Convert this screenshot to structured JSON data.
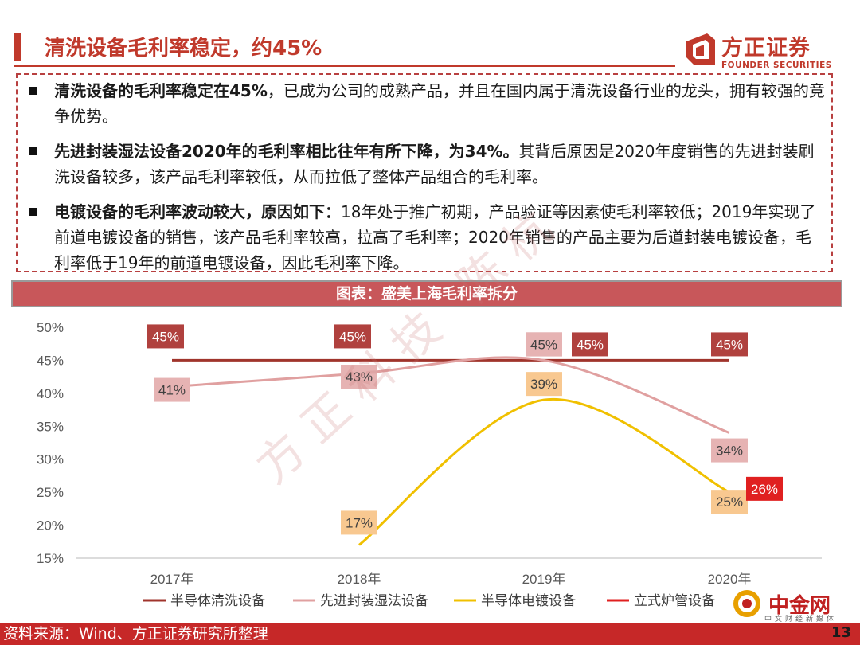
{
  "header": {
    "title": "清洗设备毛利率稳定，约45%",
    "logo_cn": "方正证券",
    "logo_en": "FOUNDER SECURITIES"
  },
  "bullets": [
    {
      "bold": "清洗设备的毛利率稳定在45%",
      "text": "，已成为公司的成熟产品，并且在国内属于清洗设备行业的龙头，拥有较强的竞争优势。"
    },
    {
      "bold": "先进封装湿法设备2020年的毛利率相比往年有所下降，为34%。",
      "text": "其背后原因是2020年度销售的先进封装刷洗设备较多，该产品毛利率较低，从而拉低了整体产品组合的毛利率。"
    },
    {
      "bold": "电镀设备的毛利率波动较大，原因如下：",
      "text": "18年处于推广初期，产品验证等因素使毛利率较低；2019年实现了前道电镀设备的销售，该产品毛利率较高，拉高了毛利率；2020年销售的产品主要为后道封装电镀设备，毛利率低于19年的前道电镀设备，因此毛利率下降。"
    }
  ],
  "chart_title": "图表：盛美上海毛利率拆分",
  "chart_data": {
    "type": "line",
    "categories": [
      "2017年",
      "2018年",
      "2019年",
      "2020年"
    ],
    "ylim": [
      15,
      50
    ],
    "yticks": [
      "15%",
      "20%",
      "25%",
      "30%",
      "35%",
      "40%",
      "45%",
      "50%"
    ],
    "series": [
      {
        "name": "半导体清洗设备",
        "color": "#a0342c",
        "values": [
          45,
          45,
          45,
          45
        ],
        "labels": [
          "45%",
          "45%",
          "45%",
          "45%"
        ]
      },
      {
        "name": "先进封装湿法设备",
        "color": "#e0a0a0",
        "values": [
          41,
          43,
          45,
          34
        ],
        "labels": [
          "41%",
          "43%",
          "45%",
          "34%"
        ]
      },
      {
        "name": "半导体电镀设备",
        "color": "#f0c000",
        "values": [
          null,
          17,
          39,
          25
        ],
        "labels": [
          "",
          "17%",
          "39%",
          "25%"
        ]
      },
      {
        "name": "立式炉管设备",
        "color": "#e02020",
        "values": [
          null,
          null,
          null,
          26
        ],
        "labels": [
          "",
          "",
          "",
          "26%"
        ]
      }
    ],
    "extra_labels": [
      {
        "text": "45%",
        "series": 0,
        "category": 2
      }
    ],
    "legend": "bottom"
  },
  "watermark": "方正科技 陈杭",
  "footer": {
    "source": "资料来源：Wind、方正证券研究所整理",
    "page": "13",
    "cngold": "中金网",
    "cngold_sub": "中文财经新媒体"
  }
}
